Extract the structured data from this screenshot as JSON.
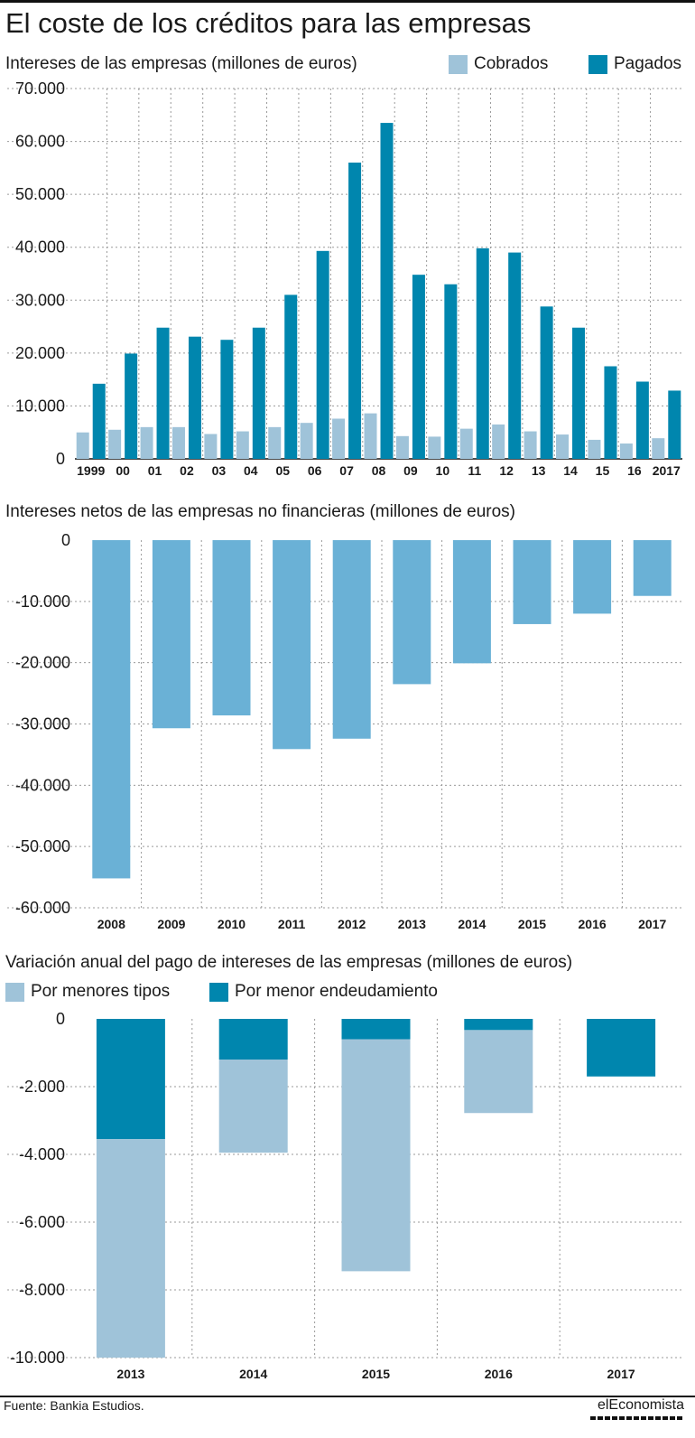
{
  "title": "El coste de los créditos para las empresas",
  "colors": {
    "cobrados": "#9fc3d9",
    "pagados": "#0086ae",
    "netos": "#6ab1d6",
    "grid": "#9a9a9a"
  },
  "footer": {
    "source": "Fuente: Bankia Estudios.",
    "brand": "elEconomista"
  },
  "chart_data": [
    {
      "type": "bar",
      "title": "Intereses de las empresas (millones de euros)",
      "categories": [
        "1999",
        "00",
        "01",
        "02",
        "03",
        "04",
        "05",
        "06",
        "07",
        "08",
        "09",
        "10",
        "11",
        "12",
        "13",
        "14",
        "15",
        "16",
        "2017"
      ],
      "series": [
        {
          "name": "Cobrados",
          "values": [
            5000,
            5500,
            6000,
            6000,
            4700,
            5200,
            6000,
            6800,
            7600,
            8600,
            4300,
            4200,
            5700,
            6500,
            5200,
            4600,
            3600,
            2900,
            3900
          ]
        },
        {
          "name": "Pagados",
          "values": [
            14200,
            19900,
            24800,
            23100,
            22500,
            24800,
            31000,
            39300,
            56000,
            63500,
            34800,
            33000,
            39800,
            39000,
            28800,
            24800,
            17500,
            14600,
            12900
          ]
        }
      ],
      "ylim": [
        0,
        70000
      ],
      "yticks": [
        "0",
        "10.000",
        "20.000",
        "30.000",
        "40.000",
        "50.000",
        "60.000",
        "70.000"
      ],
      "legend": "top-right",
      "grid": true
    },
    {
      "type": "bar",
      "title": "Intereses netos de las empresas no financieras (millones de euros)",
      "categories": [
        "2008",
        "2009",
        "2010",
        "2011",
        "2012",
        "2013",
        "2014",
        "2015",
        "2016",
        "2017"
      ],
      "values": [
        -55200,
        -30700,
        -28600,
        -34100,
        -32400,
        -23500,
        -20100,
        -13700,
        -12000,
        -9100
      ],
      "ylim": [
        -60000,
        0
      ],
      "yticks": [
        "0",
        "-10.000",
        "-20.000",
        "-30.000",
        "-40.000",
        "-50.000",
        "-60.000"
      ],
      "grid": true
    },
    {
      "type": "bar",
      "stacked": true,
      "title": "Variación anual del pago de intereses de las empresas (millones de euros)",
      "categories": [
        "2013",
        "2014",
        "2015",
        "2016",
        "2017"
      ],
      "series": [
        {
          "name": "Por menor endeudamiento",
          "values": [
            -3550,
            -1200,
            -600,
            -330,
            -1700
          ]
        },
        {
          "name": "Por menores tipos",
          "values": [
            -6450,
            -2750,
            -6850,
            -2450,
            0
          ]
        }
      ],
      "ylim": [
        -10000,
        0
      ],
      "yticks": [
        "0",
        "-2.000",
        "-4.000",
        "-6.000",
        "-8.000",
        "-10.000"
      ],
      "legend": "top-left",
      "grid": true
    }
  ]
}
